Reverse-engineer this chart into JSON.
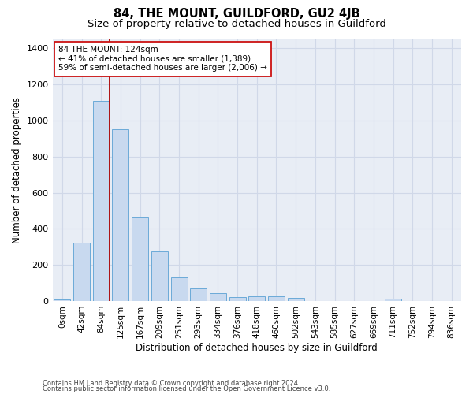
{
  "title": "84, THE MOUNT, GUILDFORD, GU2 4JB",
  "subtitle": "Size of property relative to detached houses in Guildford",
  "xlabel": "Distribution of detached houses by size in Guildford",
  "ylabel": "Number of detached properties",
  "categories": [
    "0sqm",
    "42sqm",
    "84sqm",
    "125sqm",
    "167sqm",
    "209sqm",
    "251sqm",
    "293sqm",
    "334sqm",
    "376sqm",
    "418sqm",
    "460sqm",
    "502sqm",
    "543sqm",
    "585sqm",
    "627sqm",
    "669sqm",
    "711sqm",
    "752sqm",
    "794sqm",
    "836sqm"
  ],
  "values": [
    10,
    325,
    1110,
    950,
    465,
    275,
    130,
    70,
    42,
    22,
    25,
    25,
    18,
    0,
    0,
    0,
    0,
    12,
    0,
    0,
    0
  ],
  "bar_color": "#c8d9ef",
  "bar_edge_color": "#6baad8",
  "vline_x": 2.43,
  "vline_color": "#aa0000",
  "ylim": [
    0,
    1450
  ],
  "yticks": [
    0,
    200,
    400,
    600,
    800,
    1000,
    1200,
    1400
  ],
  "annotation_text": "84 THE MOUNT: 124sqm\n← 41% of detached houses are smaller (1,389)\n59% of semi-detached houses are larger (2,006) →",
  "annotation_box_facecolor": "#ffffff",
  "annotation_box_edgecolor": "#cc1111",
  "footer_line1": "Contains HM Land Registry data © Crown copyright and database right 2024.",
  "footer_line2": "Contains public sector information licensed under the Open Government Licence v3.0.",
  "plot_bg_color": "#e8edf5",
  "grid_color": "#d0d8e8",
  "title_fontsize": 10.5,
  "subtitle_fontsize": 9.5,
  "tick_fontsize": 7.5,
  "ylabel_fontsize": 8.5,
  "xlabel_fontsize": 8.5,
  "footer_fontsize": 6.0,
  "ann_fontsize": 7.5
}
